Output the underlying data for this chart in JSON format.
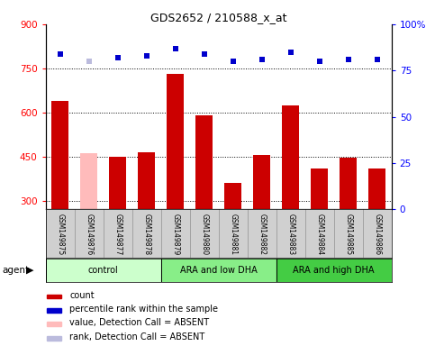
{
  "title": "GDS2652 / 210588_x_at",
  "samples": [
    "GSM149875",
    "GSM149876",
    "GSM149877",
    "GSM149878",
    "GSM149879",
    "GSM149880",
    "GSM149881",
    "GSM149882",
    "GSM149883",
    "GSM149884",
    "GSM149885",
    "GSM149886"
  ],
  "bar_values": [
    640,
    460,
    450,
    465,
    730,
    590,
    360,
    455,
    625,
    408,
    445,
    408
  ],
  "bar_colors": [
    "#cc0000",
    "#ffbbbb",
    "#cc0000",
    "#cc0000",
    "#cc0000",
    "#cc0000",
    "#cc0000",
    "#cc0000",
    "#cc0000",
    "#cc0000",
    "#cc0000",
    "#cc0000"
  ],
  "dot_values": [
    84,
    80,
    82,
    83,
    87,
    84,
    80,
    81,
    85,
    80,
    81,
    81
  ],
  "dot_colors": [
    "#0000cc",
    "#bbbbdd",
    "#0000cc",
    "#0000cc",
    "#0000cc",
    "#0000cc",
    "#0000cc",
    "#0000cc",
    "#0000cc",
    "#0000cc",
    "#0000cc",
    "#0000cc"
  ],
  "ylim_left": [
    270,
    900
  ],
  "ylim_right": [
    0,
    100
  ],
  "yticks_left": [
    300,
    450,
    600,
    750,
    900
  ],
  "yticks_right": [
    0,
    25,
    50,
    75,
    100
  ],
  "hlines": [
    300,
    450,
    600,
    750
  ],
  "groups": [
    {
      "label": "control",
      "start": 0,
      "end": 3,
      "color": "#ccffcc"
    },
    {
      "label": "ARA and low DHA",
      "start": 4,
      "end": 7,
      "color": "#88ee88"
    },
    {
      "label": "ARA and high DHA",
      "start": 8,
      "end": 11,
      "color": "#44cc44"
    }
  ],
  "agent_label": "agent",
  "legend_items": [
    {
      "label": "count",
      "color": "#cc0000"
    },
    {
      "label": "percentile rank within the sample",
      "color": "#0000cc"
    },
    {
      "label": "value, Detection Call = ABSENT",
      "color": "#ffbbbb"
    },
    {
      "label": "rank, Detection Call = ABSENT",
      "color": "#bbbbdd"
    }
  ],
  "bar_bottom": 270
}
